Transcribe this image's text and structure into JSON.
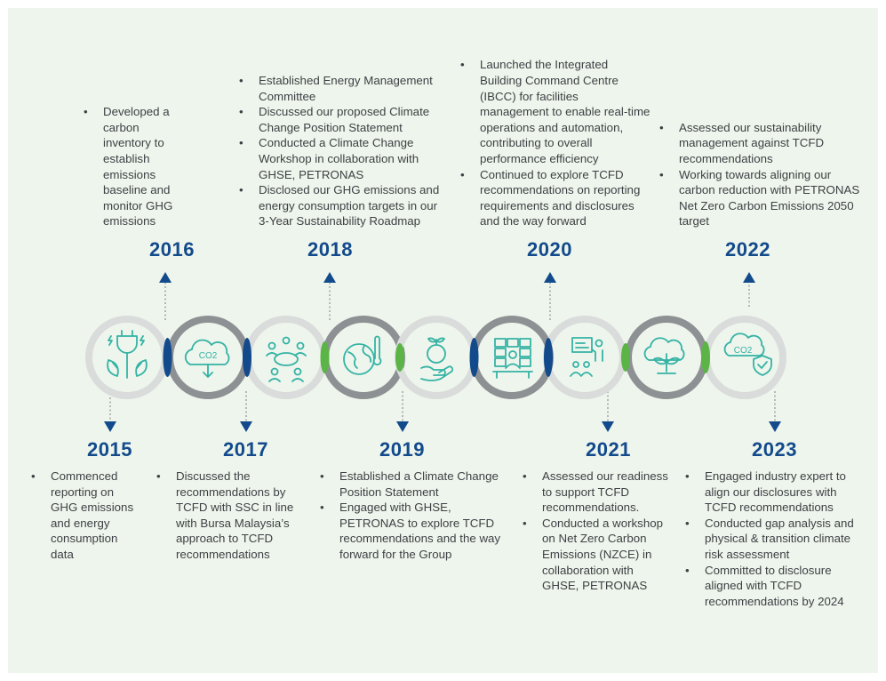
{
  "colors": {
    "background": "#eef5ec",
    "year": "#124a8c",
    "icon": "#35b3a5",
    "ring_light": "#d9dcdb",
    "ring_dark": "#8e9194",
    "accent_blue": "#124a8c",
    "accent_green": "#5bb446"
  },
  "icons": [
    "plug-leaf-icon",
    "co2-cloud-down-icon",
    "meeting-people-icon",
    "globe-thermometer-icon",
    "hand-plant-globe-icon",
    "command-centre-screens-icon",
    "presentation-icon",
    "cloud-sprout-icon",
    "co2-shield-check-icon"
  ],
  "milestones": {
    "y2015": {
      "year": "2015",
      "items": [
        "Commenced reporting on GHG emissions and energy consumption data"
      ]
    },
    "y2016": {
      "year": "2016",
      "items": [
        "Developed a carbon inventory to establish emissions baseline and monitor GHG emissions"
      ]
    },
    "y2017": {
      "year": "2017",
      "items": [
        "Discussed the recommendations by TCFD with SSC in line with Bursa Malaysia’s approach to TCFD recommendations"
      ]
    },
    "y2018": {
      "year": "2018",
      "items": [
        "Established Energy Management Committee",
        "Discussed our proposed Climate Change Position Statement",
        "Conducted a Climate Change Workshop in collaboration with GHSE, PETRONAS",
        "Disclosed our GHG emissions and energy consumption targets in our 3-Year Sustainability Roadmap"
      ]
    },
    "y2019": {
      "year": "2019",
      "items": [
        "Established a Climate Change Position Statement",
        "Engaged with GHSE, PETRONAS to explore TCFD recommendations and the way forward for the Group"
      ]
    },
    "y2020": {
      "year": "2020",
      "items": [
        "Launched the Integrated Building Command Centre (IBCC) for facilities management to enable real-time operations and automation, contributing to overall performance efficiency",
        "Continued to explore TCFD recommendations on reporting requirements and disclosures and the way forward"
      ]
    },
    "y2021": {
      "year": "2021",
      "items": [
        "Assessed our readiness to support TCFD recommendations.",
        "Conducted a workshop on Net Zero Carbon Emissions (NZCE) in collaboration with GHSE, PETRONAS"
      ]
    },
    "y2022": {
      "year": "2022",
      "items": [
        "Assessed our sustainability management against TCFD recommendations",
        "Working towards aligning our carbon reduction with PETRONAS Net Zero Carbon Emissions 2050 target"
      ]
    },
    "y2023": {
      "year": "2023",
      "items": [
        "Engaged industry expert to align our disclosures with TCFD recommendations",
        "Conducted gap analysis and physical & transition climate risk assessment",
        "Committed to disclosure aligned with TCFD recommendations by 2024"
      ]
    }
  }
}
